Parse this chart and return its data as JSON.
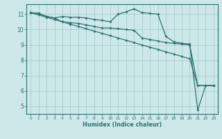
{
  "xlabel": "Humidex (Indice chaleur)",
  "bg_color": "#cce8e8",
  "grid_color": "#aacccc",
  "line_color": "#2e7070",
  "xlim": [
    -0.5,
    23.5
  ],
  "ylim": [
    4.5,
    11.65
  ],
  "xticks": [
    0,
    1,
    2,
    3,
    4,
    5,
    6,
    7,
    8,
    9,
    10,
    11,
    12,
    13,
    14,
    15,
    16,
    17,
    18,
    19,
    20,
    21,
    22,
    23
  ],
  "yticks": [
    5,
    6,
    7,
    8,
    9,
    10,
    11
  ],
  "line_diagonal_x": [
    0,
    1,
    2,
    3,
    4,
    5,
    6,
    7,
    8,
    9,
    10,
    11,
    12,
    13,
    14,
    15,
    16,
    17,
    18,
    19,
    20,
    21,
    22,
    23
  ],
  "line_diagonal_y": [
    11.1,
    10.95,
    10.8,
    10.65,
    10.5,
    10.35,
    10.2,
    10.05,
    9.9,
    9.75,
    9.6,
    9.45,
    9.3,
    9.15,
    9.0,
    8.85,
    8.7,
    8.55,
    8.4,
    8.25,
    8.1,
    6.35,
    6.35,
    6.35
  ],
  "line_upper_x": [
    0,
    1,
    2,
    3,
    4,
    5,
    6,
    7,
    8,
    9,
    10,
    11,
    12,
    13,
    14,
    15,
    16,
    17,
    18,
    19,
    20,
    21,
    22,
    23
  ],
  "line_upper_y": [
    11.1,
    11.05,
    10.85,
    10.75,
    10.85,
    10.8,
    10.8,
    10.75,
    10.65,
    10.6,
    10.5,
    11.0,
    11.15,
    11.35,
    11.1,
    11.05,
    11.0,
    9.55,
    9.2,
    9.1,
    9.05,
    4.75,
    6.35,
    6.35
  ],
  "line_lower_x": [
    0,
    1,
    2,
    3,
    4,
    5,
    6,
    7,
    8,
    9,
    10,
    11,
    12,
    13,
    14,
    15,
    16,
    17,
    18,
    19,
    20,
    21,
    22,
    23
  ],
  "line_lower_y": [
    11.1,
    11.05,
    10.85,
    10.75,
    10.5,
    10.45,
    10.4,
    10.3,
    10.2,
    10.1,
    10.1,
    10.05,
    10.0,
    9.95,
    9.45,
    9.35,
    9.25,
    9.15,
    9.1,
    9.05,
    9.0,
    6.35,
    6.35,
    6.35
  ]
}
